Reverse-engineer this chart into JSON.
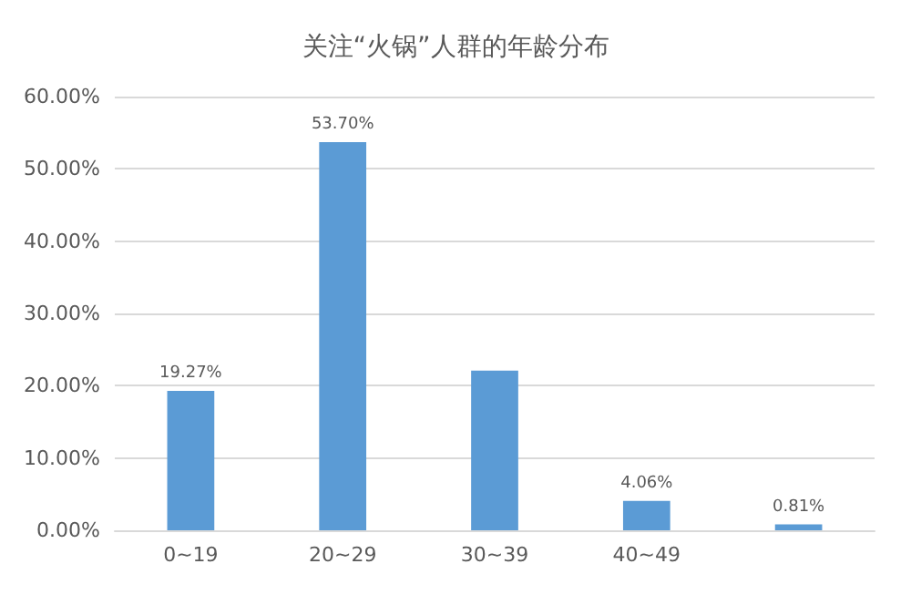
{
  "chart_data": {
    "type": "bar",
    "title": "关注“火锅”人群的年龄分布",
    "categories": [
      "0~19",
      "20~29",
      "30~39",
      "40~49",
      null
    ],
    "values": [
      19.27,
      53.7,
      22.1,
      4.06,
      0.81
    ],
    "value_labels": [
      "19.27%",
      "53.70%",
      null,
      "4.06%",
      "0.81%"
    ],
    "color": "#5b9bd5",
    "ylim": [
      0,
      60
    ],
    "yticks": [
      {
        "value": 0,
        "label": "0.00%"
      },
      {
        "value": 10,
        "label": "10.00%"
      },
      {
        "value": 20,
        "label": "20.00%"
      },
      {
        "value": 30,
        "label": "30.00%"
      },
      {
        "value": 40,
        "label": "40.00%"
      },
      {
        "value": 50,
        "label": "50.00%"
      },
      {
        "value": 60,
        "label": "60.00%"
      }
    ],
    "grid": "y"
  }
}
